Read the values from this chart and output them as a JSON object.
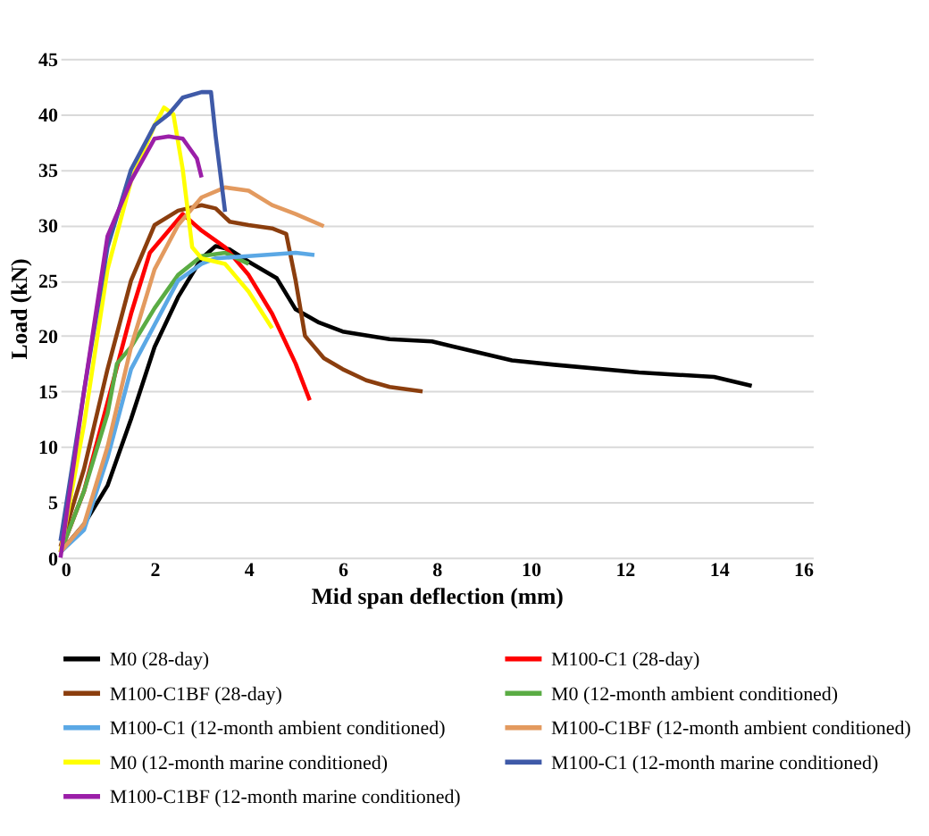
{
  "chart_data": {
    "type": "line",
    "xlabel": "Mid span deflection (mm)",
    "ylabel": "Load (kN)",
    "xlim": [
      0,
      16
    ],
    "xticks": [
      0,
      2,
      4,
      6,
      8,
      10,
      12,
      14,
      16
    ],
    "ylim": [
      0,
      45
    ],
    "yticks": [
      0,
      5,
      10,
      15,
      20,
      25,
      30,
      35,
      40,
      45
    ],
    "grid": "y",
    "legend": "bottom",
    "marker": "none",
    "line_style": "solid",
    "series": [
      {
        "name": "M0 (28-day)",
        "color": "#000000",
        "x": [
          0,
          0.5,
          1,
          1.5,
          2,
          2.5,
          3,
          3.3,
          3.6,
          4,
          4.6,
          5,
          5.5,
          6,
          7,
          7.9,
          9.6,
          10.5,
          12.3,
          13.9,
          14.7
        ],
        "values": [
          0.5,
          3,
          6.5,
          12.5,
          19,
          23.5,
          27,
          28.1,
          27.8,
          26.7,
          25.2,
          22.4,
          21.2,
          20.4,
          19.7,
          19.5,
          17.8,
          17.4,
          16.7,
          16.3,
          15.5
        ]
      },
      {
        "name": "M100-C1 (28-day)",
        "color": "#ff0000",
        "x": [
          0,
          0.5,
          1,
          1.5,
          1.9,
          2.3,
          2.6,
          3,
          3.5,
          4,
          4.5,
          5,
          5.3
        ],
        "values": [
          0.5,
          6,
          14,
          22,
          27.5,
          29.5,
          31,
          29.5,
          28,
          25.5,
          22,
          17.5,
          14.2
        ]
      },
      {
        "name": "M100-C1BF (28-day)",
        "color": "#8b3e0e",
        "x": [
          0,
          0.5,
          1,
          1.5,
          2,
          2.5,
          3,
          3.3,
          3.6,
          4,
          4.5,
          4.8,
          5,
          5.2,
          5.6,
          6,
          6.5,
          7,
          7.7
        ],
        "values": [
          1,
          8,
          17,
          25,
          30,
          31.3,
          31.8,
          31.5,
          30.3,
          30,
          29.7,
          29.2,
          25,
          20,
          18,
          17,
          16,
          15.4,
          15
        ]
      },
      {
        "name": " M0 (12-month ambient conditioned)",
        "color": "#5aac44",
        "x": [
          0,
          0.5,
          1,
          1.2,
          1.5,
          2,
          2.5,
          3,
          3.5,
          4
        ],
        "values": [
          0.5,
          6,
          13,
          17.5,
          19,
          22.5,
          25.5,
          27.2,
          27.5,
          26.5
        ]
      },
      {
        "name": "M100-C1  (12-month ambient conditioned)",
        "color": "#5ba8e5",
        "x": [
          0,
          0.5,
          1,
          1.5,
          2,
          2.5,
          3,
          3.3,
          4,
          5,
          5.4
        ],
        "values": [
          0.5,
          2.5,
          9,
          17,
          21,
          25,
          26.5,
          27,
          27.2,
          27.5,
          27.3
        ]
      },
      {
        "name": "M100-C1BF (12-month ambient conditioned)",
        "color": "#e39a5f",
        "x": [
          0,
          0.5,
          1,
          1.5,
          2,
          2.5,
          3,
          3.5,
          4,
          4.5,
          5,
          5.6
        ],
        "values": [
          0.5,
          3,
          10,
          19,
          26,
          30,
          32.5,
          33.4,
          33.1,
          31.8,
          31,
          29.9
        ]
      },
      {
        "name": "M0 (12-month marine conditioned)",
        "color": "#ffff00",
        "x": [
          0,
          0.5,
          1,
          1.5,
          2,
          2.2,
          2.4,
          2.6,
          2.8,
          3,
          3.5,
          4,
          4.5
        ],
        "values": [
          0.5,
          12,
          26,
          34,
          39,
          40.6,
          40,
          35,
          28,
          27,
          26.5,
          24,
          20.7
        ]
      },
      {
        "name": "M100-C1 (12-month marine conditioned)",
        "color": "#3f5aa8",
        "x": [
          0,
          0.5,
          1,
          1.5,
          2,
          2.3,
          2.6,
          3,
          3.2,
          3.3,
          3.5
        ],
        "values": [
          1.5,
          15,
          28,
          35,
          39,
          40,
          41.5,
          42,
          42,
          38,
          31.2
        ]
      },
      {
        "name": "M100-C1BF (12-month marine conditioned)",
        "color": "#9b1fa8",
        "x": [
          0,
          0.5,
          1,
          1.5,
          2,
          2.3,
          2.6,
          2.9,
          3
        ],
        "values": [
          0,
          15,
          29,
          34,
          37.8,
          38,
          37.8,
          36,
          34.3
        ]
      }
    ]
  }
}
